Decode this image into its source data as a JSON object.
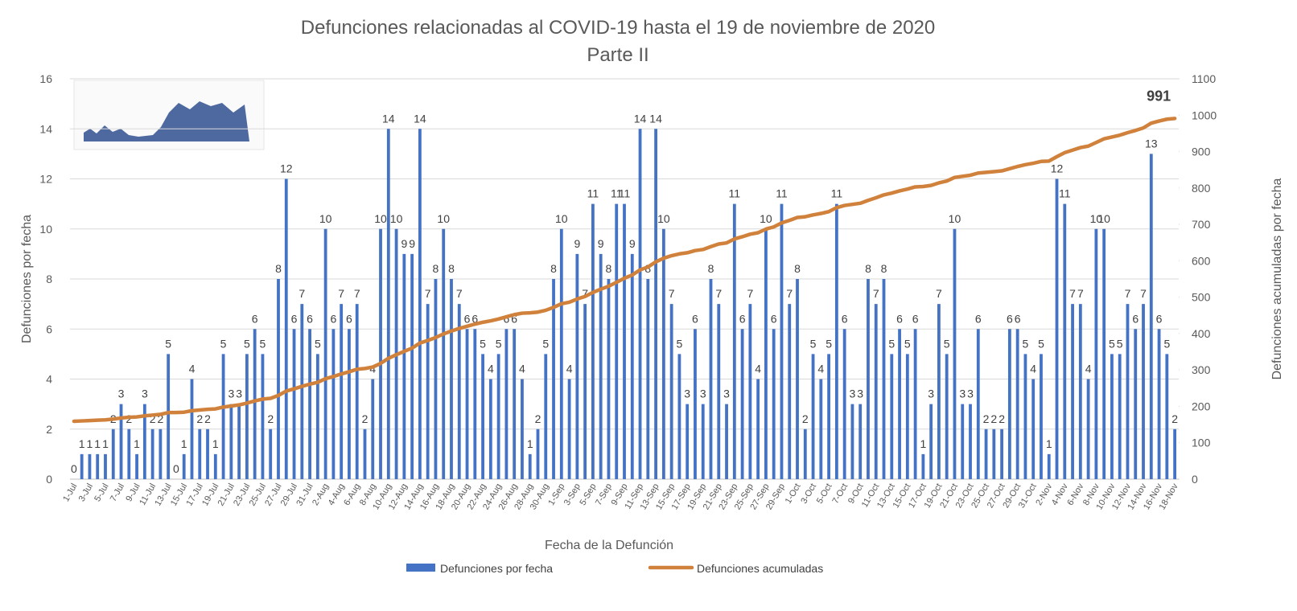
{
  "chart_data": {
    "type": "bar_line",
    "title": "Defunciones relacionadas al COVID-19 hasta el 19 de noviembre de 2020",
    "subtitle": "Parte II",
    "x_label": "Fecha de la Defunción",
    "y_label": "Defunciones por fecha",
    "y2_label": "Defunciones acumuladas por fecha",
    "categories": [
      "1-Jul",
      null,
      "3-Jul",
      null,
      "5-Jul",
      null,
      "7-Jul",
      null,
      "9-Jul",
      null,
      "11-Jul",
      null,
      "13-Jul",
      null,
      "15-Jul",
      null,
      "17-Jul",
      null,
      "19-Jul",
      null,
      "21-Jul",
      null,
      "23-Jul",
      null,
      "25-Jul",
      null,
      "27-Jul",
      null,
      "29-Jul",
      null,
      "31-Jul",
      null,
      "2-Aug",
      null,
      "4-Aug",
      null,
      "6-Aug",
      null,
      "8-Aug",
      null,
      "10-Aug",
      null,
      "12-Aug",
      null,
      "14-Aug",
      null,
      "16-Aug",
      null,
      "18-Aug",
      null,
      "20-Aug",
      null,
      "22-Aug",
      null,
      "24-Aug",
      null,
      "26-Aug",
      null,
      "28-Aug",
      null,
      "30-Aug",
      null,
      "1-Sep",
      null,
      "3-Sep",
      null,
      "5-Sep",
      null,
      "7-Sep",
      null,
      "9-Sep",
      null,
      "11-Sep",
      null,
      "13-Sep",
      null,
      "15-Sep",
      null,
      "17-Sep",
      null,
      "19-Sep",
      null,
      "21-Sep",
      null,
      "23-Sep",
      null,
      "25-Sep",
      null,
      "27-Sep",
      null,
      "29-Sep",
      null,
      "1-Oct",
      null,
      "3-Oct",
      null,
      "5-Oct",
      null,
      "7-Oct",
      null,
      "9-Oct",
      null,
      "11-Oct",
      null,
      "13-Oct",
      null,
      "15-Oct",
      null,
      "17-Oct",
      null,
      "19-Oct",
      null,
      "21-Oct",
      null,
      "23-Oct",
      null,
      "25-Oct",
      null,
      "27-Oct",
      null,
      "29-Oct",
      null,
      "31-Oct",
      null,
      "2-Nov",
      null,
      "4-Nov",
      null,
      "6-Nov",
      null,
      "8-Nov",
      null,
      "10-Nov",
      null,
      "12-Nov",
      null,
      "14-Nov",
      null,
      "16-Nov",
      null,
      "18-Nov"
    ],
    "series": [
      {
        "name": "Defunciones por fecha",
        "color": "#4472c4",
        "axis": "y",
        "values": [
          0,
          1,
          1,
          1,
          1,
          2,
          3,
          2,
          1,
          3,
          2,
          2,
          5,
          0,
          1,
          4,
          2,
          2,
          1,
          5,
          3,
          3,
          5,
          6,
          5,
          2,
          8,
          12,
          6,
          7,
          6,
          5,
          10,
          6,
          7,
          6,
          7,
          2,
          4,
          10,
          14,
          10,
          9,
          9,
          14,
          7,
          8,
          10,
          8,
          7,
          6,
          6,
          5,
          4,
          5,
          6,
          6,
          4,
          1,
          2,
          5,
          8,
          10,
          4,
          9,
          7,
          11,
          9,
          8,
          11,
          11,
          9,
          14,
          8,
          14,
          10,
          7,
          5,
          3,
          6,
          3,
          8,
          7,
          3,
          11,
          6,
          7,
          4,
          10,
          6,
          11,
          7,
          8,
          2,
          5,
          4,
          5,
          11,
          6,
          3,
          3,
          8,
          7,
          8,
          5,
          6,
          5,
          6,
          1,
          3,
          7,
          5,
          10,
          3,
          3,
          6,
          2,
          2,
          2,
          6,
          6,
          5,
          4,
          5,
          1,
          12,
          11,
          7,
          7,
          4,
          10,
          10,
          5,
          5,
          7,
          6,
          7,
          13,
          6,
          5,
          2
        ]
      },
      {
        "name": "Defunciones acumuladas",
        "color": "#d0823c",
        "axis": "y2",
        "values": [
          159,
          160,
          161,
          162,
          163,
          165,
          168,
          170,
          171,
          174,
          176,
          178,
          183,
          183,
          184,
          188,
          190,
          192,
          193,
          198,
          201,
          204,
          209,
          215,
          220,
          222,
          230,
          242,
          248,
          255,
          261,
          266,
          276,
          282,
          289,
          295,
          302,
          304,
          308,
          318,
          332,
          342,
          351,
          360,
          374,
          381,
          389,
          399,
          407,
          414,
          420,
          426,
          431,
          435,
          440,
          446,
          452,
          456,
          457,
          459,
          464,
          472,
          482,
          486,
          495,
          502,
          513,
          522,
          530,
          541,
          552,
          561,
          575,
          583,
          597,
          607,
          614,
          619,
          622,
          628,
          631,
          639,
          646,
          649,
          660,
          666,
          673,
          677,
          687,
          693,
          704,
          711,
          719,
          721,
          726,
          730,
          735,
          746,
          752,
          755,
          758,
          766,
          773,
          781,
          786,
          792,
          797,
          803,
          804,
          807,
          814,
          819,
          829,
          832,
          835,
          841,
          843,
          845,
          847,
          853,
          859,
          864,
          868,
          873,
          874,
          886,
          897,
          904,
          911,
          915,
          925,
          935,
          940,
          945,
          952,
          958,
          965,
          978,
          984,
          989,
          991
        ]
      }
    ],
    "ylim": [
      0,
      16
    ],
    "yticks": [
      0,
      2,
      4,
      6,
      8,
      10,
      12,
      14,
      16
    ],
    "y2lim": [
      0,
      1100
    ],
    "y2ticks": [
      0,
      100,
      200,
      300,
      400,
      500,
      600,
      700,
      800,
      900,
      1000,
      1100
    ],
    "grid": true,
    "legend": "bottom"
  }
}
